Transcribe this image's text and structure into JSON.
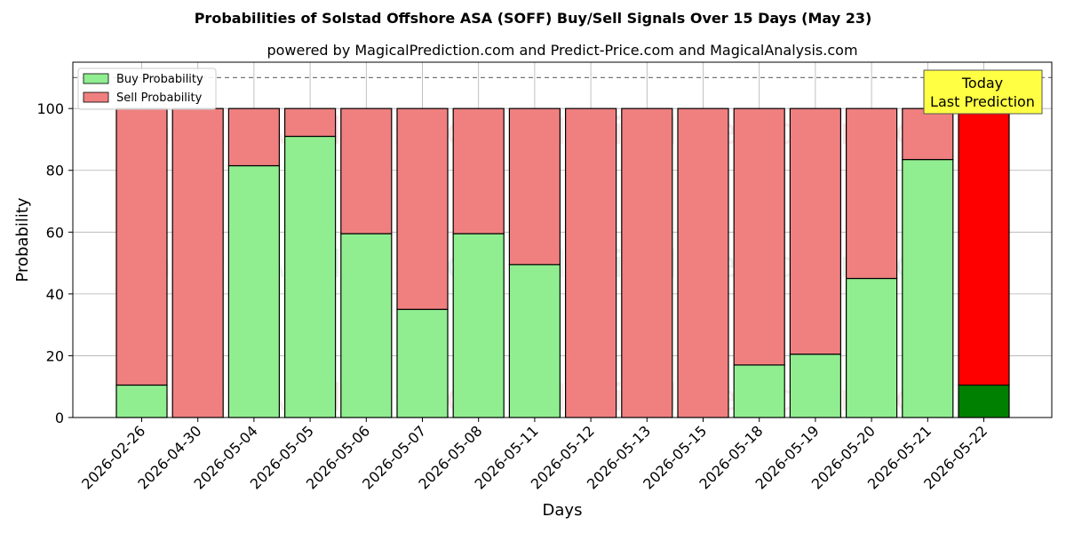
{
  "chart_data": {
    "type": "bar",
    "stacked": true,
    "title": "Probabilities of Solstad Offshore ASA (SOFF) Buy/Sell Signals Over 15 Days (May 23)",
    "subtitle": "powered by MagicalPrediction.com and Predict-Price.com and MagicalAnalysis.com",
    "xlabel": "Days",
    "ylabel": "Probability",
    "ylim": [
      0,
      115
    ],
    "yticks": [
      0,
      20,
      40,
      60,
      80,
      100
    ],
    "grid": true,
    "legend_position": "top-left",
    "reference_line": 110,
    "categories": [
      "2026-02-26",
      "2026-04-30",
      "2026-05-04",
      "2026-05-05",
      "2026-05-06",
      "2026-05-07",
      "2026-05-08",
      "2026-05-11",
      "2026-05-12",
      "2026-05-13",
      "2026-05-15",
      "2026-05-18",
      "2026-05-19",
      "2026-05-20",
      "2026-05-21",
      "2026-05-22"
    ],
    "series": [
      {
        "name": "Buy Probability",
        "color": "#90ee90",
        "highlight_color": "#008000",
        "values": [
          10.5,
          0,
          81.5,
          91,
          59.5,
          35,
          59.5,
          49.5,
          0,
          0,
          0,
          17,
          20.5,
          45,
          83.5,
          10.5
        ]
      },
      {
        "name": "Sell Probability",
        "color": "#f08080",
        "highlight_color": "#ff0000",
        "values": [
          89.5,
          100,
          18.5,
          9,
          40.5,
          65,
          40.5,
          50.5,
          100,
          100,
          100,
          83,
          79.5,
          55,
          16.5,
          89.5
        ]
      }
    ],
    "annotation": {
      "line1": "Today",
      "line2": "Last Prediction",
      "box_color": "#ffff44"
    },
    "watermarks": [
      "MagicalAnalysis.com",
      "MagicalPrediction.com"
    ]
  }
}
